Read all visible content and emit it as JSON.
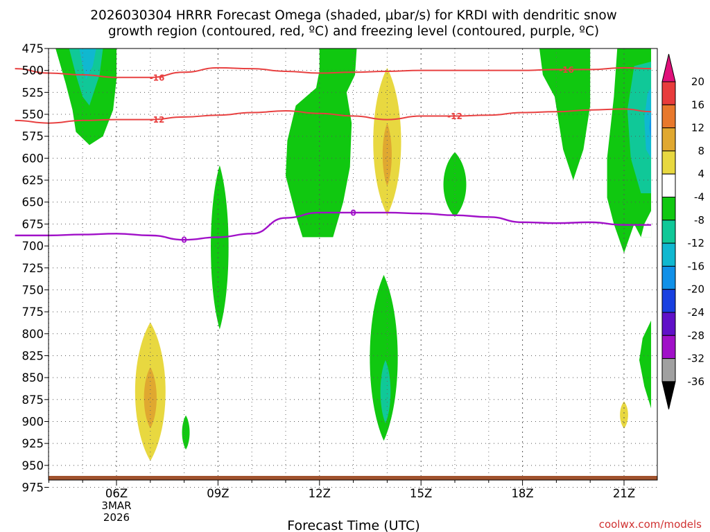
{
  "chart_data": {
    "type": "time-height contour",
    "title_line1": "2026030304 HRRR Forecast Omega (shaded, μbar/s) for KRDI with dendritic snow",
    "title_line2": "growth region (contoured, red, ºC) and freezing level (contoured, purple, ºC)",
    "xlabel": "Forecast Time (UTC)",
    "credit": "coolwx.com/models",
    "x_range_hours": [
      3,
      21.8
    ],
    "y_range_mb": [
      475,
      980
    ],
    "y_ticks": [
      475,
      500,
      525,
      550,
      575,
      600,
      625,
      650,
      675,
      700,
      725,
      750,
      775,
      800,
      825,
      850,
      875,
      900,
      925,
      950,
      975
    ],
    "y_tick_labels": [
      "475",
      "500",
      "525",
      "550",
      "575",
      "600",
      "625",
      "650",
      "675",
      "700",
      "725",
      "750",
      "775",
      "800",
      "825",
      "850",
      "875",
      "900",
      "925",
      "950",
      "975"
    ],
    "x_ticks": [
      {
        "hour": 6,
        "label": "06Z",
        "label2": "3MAR",
        "label3": "2026"
      },
      {
        "hour": 9,
        "label": "09Z"
      },
      {
        "hour": 12,
        "label": "12Z"
      },
      {
        "hour": 15,
        "label": "15Z"
      },
      {
        "hour": 18,
        "label": "18Z"
      },
      {
        "hour": 21,
        "label": "21Z"
      }
    ],
    "colorbar": {
      "levels": [
        -36,
        -32,
        -28,
        -24,
        -20,
        -16,
        -12,
        -8,
        -4,
        4,
        8,
        12,
        16,
        20
      ],
      "labels": [
        "20",
        "16",
        "12",
        "8",
        "4",
        "-4",
        "-8",
        "-12",
        "-16",
        "-20",
        "-24",
        "-28",
        "-32",
        "-36"
      ],
      "colors_top_to_bottom": [
        "#e0107a",
        "#e83c3c",
        "#e8782c",
        "#e0a830",
        "#e8d840",
        "#ffffff",
        "#10c810",
        "#10c898",
        "#10b8d0",
        "#1090e8",
        "#1840e0",
        "#6010c8",
        "#a010c8",
        "#a0a0a0",
        "#000000"
      ]
    },
    "contours": [
      {
        "name": "-16C",
        "label": "-16",
        "color": "#e84040",
        "points": [
          [
            3,
            498
          ],
          [
            4,
            503
          ],
          [
            5,
            505
          ],
          [
            6,
            508
          ],
          [
            7,
            508
          ],
          [
            8,
            502
          ],
          [
            9,
            497
          ],
          [
            10,
            498
          ],
          [
            11,
            501
          ],
          [
            12,
            503
          ],
          [
            13,
            502
          ],
          [
            14,
            501
          ],
          [
            15,
            500
          ],
          [
            16,
            500
          ],
          [
            17,
            500
          ],
          [
            18,
            500
          ],
          [
            19,
            499
          ],
          [
            20,
            499
          ],
          [
            21,
            497
          ],
          [
            21.8,
            498
          ]
        ]
      },
      {
        "name": "-12C",
        "label": "-12",
        "color": "#e84040",
        "points": [
          [
            3,
            557
          ],
          [
            4,
            560
          ],
          [
            5,
            557
          ],
          [
            6,
            556
          ],
          [
            7,
            556
          ],
          [
            8,
            553
          ],
          [
            9,
            551
          ],
          [
            10,
            548
          ],
          [
            11,
            546
          ],
          [
            12,
            549
          ],
          [
            13,
            552
          ],
          [
            14,
            556
          ],
          [
            15,
            552
          ],
          [
            16,
            552
          ],
          [
            17,
            551
          ],
          [
            18,
            548
          ],
          [
            19,
            547
          ],
          [
            20,
            545
          ],
          [
            21,
            544
          ],
          [
            21.8,
            547
          ]
        ]
      },
      {
        "name": "0C freezing level",
        "label": "0",
        "color": "#a010c8",
        "points": [
          [
            3,
            688
          ],
          [
            4,
            688
          ],
          [
            5,
            687
          ],
          [
            6,
            686
          ],
          [
            7,
            688
          ],
          [
            8,
            693
          ],
          [
            9,
            690
          ],
          [
            10,
            686
          ],
          [
            11,
            668
          ],
          [
            12,
            662
          ],
          [
            13,
            662
          ],
          [
            14,
            662
          ],
          [
            15,
            663
          ],
          [
            16,
            665
          ],
          [
            17,
            667
          ],
          [
            18,
            673
          ],
          [
            19,
            674
          ],
          [
            20,
            673
          ],
          [
            21,
            676
          ],
          [
            21.8,
            676
          ]
        ]
      }
    ],
    "shaded_regions": [
      {
        "value_range": "-8 to -4",
        "color": "#10c810",
        "desc": "upward motion near 05Z-07Z 475-585mb"
      },
      {
        "value_range": "-12 to -8",
        "color": "#10c898",
        "desc": "core near 05Z 500mb"
      },
      {
        "value_range": "-16 to -12",
        "color": "#10b8d0",
        "desc": "core near 05Z 485mb"
      },
      {
        "value_range": "4 to 8",
        "color": "#e8d840",
        "desc": "subsidence 06Z-07Z 790-945mb"
      },
      {
        "value_range": "8 to 12",
        "color": "#e0a830",
        "desc": "core 07Z 850-900mb"
      },
      {
        "value_range": "-8 to -4",
        "color": "#10c810",
        "desc": "09Z 610-795mb"
      },
      {
        "value_range": "-8 to -4",
        "color": "#10c810",
        "desc": "08Z 895-930mb"
      },
      {
        "value_range": "-8 to -4",
        "color": "#10c810",
        "desc": "11Z-13Z 475-690mb"
      },
      {
        "value_range": "4 to 8",
        "color": "#e8d840",
        "desc": "14Z 500-660mb"
      },
      {
        "value_range": "8 to 12",
        "color": "#e0a830",
        "desc": "14Z 560-630mb"
      },
      {
        "value_range": "-8 to -4",
        "color": "#10c810",
        "desc": "14Z 735-920mb"
      },
      {
        "value_range": "-12 to -8",
        "color": "#10c898",
        "desc": "14Z 830-900mb"
      },
      {
        "value_range": "-8 to -4",
        "color": "#10c810",
        "desc": "16Z 595-665mb"
      },
      {
        "value_range": "-8 to -4",
        "color": "#10c810",
        "desc": "19Z 475-625mb"
      },
      {
        "value_range": "-8 to -4",
        "color": "#10c810",
        "desc": "20Z-22Z 475-710mb"
      },
      {
        "value_range": "-12 to -8",
        "color": "#10c898",
        "desc": "21.5Z 490-640mb"
      },
      {
        "value_range": "-16 to -12",
        "color": "#10b8d0",
        "desc": "21.8Z 520-600mb"
      },
      {
        "value_range": "-8 to -4",
        "color": "#10c810",
        "desc": "21.8Z 795-885mb"
      },
      {
        "value_range": "4 to 8",
        "color": "#e8d840",
        "desc": "21Z 880-905mb"
      }
    ]
  }
}
